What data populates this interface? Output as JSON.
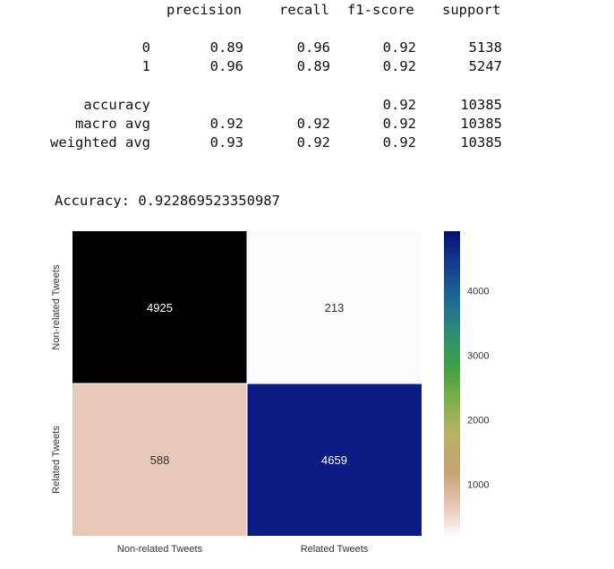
{
  "report": {
    "headers": [
      "precision",
      "recall",
      "f1-score",
      "support"
    ],
    "rows": [
      {
        "label": "0",
        "precision": "0.89",
        "recall": "0.96",
        "f1": "0.92",
        "support": "5138"
      },
      {
        "label": "1",
        "precision": "0.96",
        "recall": "0.89",
        "f1": "0.92",
        "support": "5247"
      },
      {
        "label": "accuracy",
        "precision": "",
        "recall": "",
        "f1": "0.92",
        "support": "10385"
      },
      {
        "label": "macro avg",
        "precision": "0.92",
        "recall": "0.92",
        "f1": "0.92",
        "support": "10385"
      },
      {
        "label": "weighted avg",
        "precision": "0.93",
        "recall": "0.92",
        "f1": "0.92",
        "support": "10385"
      }
    ]
  },
  "accuracy_text": "Accuracy: 0.922869523350987",
  "chart_data": {
    "type": "heatmap",
    "x_categories": [
      "Non-related Tweets",
      "Related Tweets"
    ],
    "y_categories": [
      "Non-related Tweets",
      "Related Tweets"
    ],
    "values": [
      [
        4925,
        213
      ],
      [
        588,
        4659
      ]
    ],
    "annotations": [
      "4925",
      "213",
      "588",
      "4659"
    ],
    "colormap": "gist_earth_r",
    "colorbar": {
      "ticks": [
        1000,
        2000,
        3000,
        4000
      ],
      "tick_labels": [
        "1000",
        "2000",
        "3000",
        "4000"
      ],
      "range": [
        213,
        4925
      ]
    },
    "colors": {
      "cell_0_0": "#000000",
      "cell_0_1": "#fcfbfb",
      "cell_1_0": "#e8c9b9",
      "cell_1_1": "#0c1b83",
      "annotation_on_dark": "#ffffff",
      "annotation_on_light": "#333333",
      "cell_border": "#ffffff"
    },
    "title": "",
    "xlabel": "",
    "ylabel": ""
  }
}
